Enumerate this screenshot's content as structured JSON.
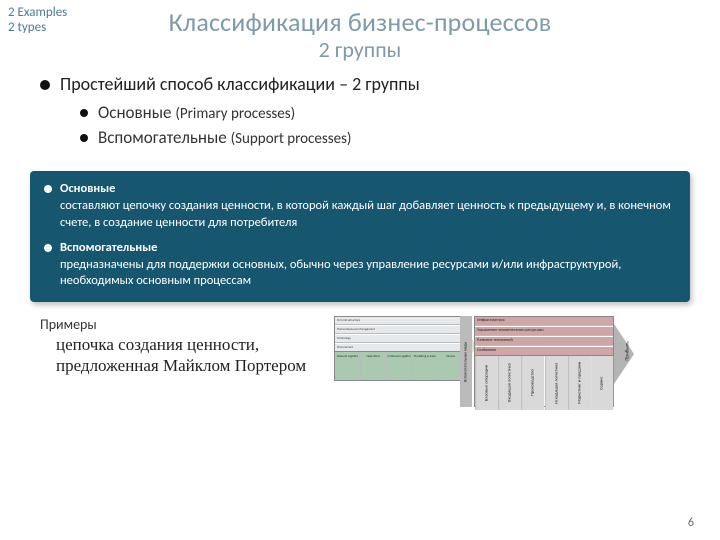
{
  "colors": {
    "title": "#7f9aa9",
    "corner_note": "#4a7a9a",
    "defbox_bg": "#17566f",
    "defbox_text": "#ffffff",
    "body_text": "#333333",
    "vc1_primary": "#a9c9b1",
    "vc1_margin": "#d7e5c9",
    "vc2_support": "#cfa6a6",
    "vc2_primary": "#d9d9d9",
    "vc2_margin": "#b4b4b4"
  },
  "fonts": {
    "title_size_pt": 26,
    "subtitle_size_pt": 22,
    "bullet_l1_pt": 18,
    "bullet_l2_pt": 17,
    "defbox_pt": 12.5,
    "example_label_pt": 14,
    "example_desc_pt": 17
  },
  "corner_note": {
    "line1": "2 Examples",
    "line2": "2 types"
  },
  "title": {
    "main": "Классификация бизнес-процессов",
    "sub": "2 группы"
  },
  "bullets": {
    "l1": "Простейший способ классификации – 2 группы",
    "l2a_main": "Основные",
    "l2a_paren": "(Primary processes)",
    "l2b_main": "Вспомогательные",
    "l2b_paren": "(Support processes)"
  },
  "definitions": {
    "a_head": "Основные",
    "a_body": "составляют цепочку создания ценности, в которой каждый шаг добавляет ценность к предыдущему и, в конечном счете, в создание ценности для потребителя",
    "b_head": "Вспомогательные",
    "b_body": "предназначены для поддержки основных, обычно через управление ресурсами и/или инфраструктурой, необходимых основным процессам"
  },
  "examples": {
    "label": "Примеры",
    "desc": "цепочка создания ценности, предложенная Майклом Портером"
  },
  "vc1": {
    "support": [
      "Firm Infrastructure",
      "Human Resource Management",
      "Technology",
      "Procurement"
    ],
    "primary": [
      "Inbound Logistics",
      "Operations",
      "Outbound Logistics",
      "Marketing & Sales",
      "Service"
    ],
    "margin_label": "Margin"
  },
  "vc2": {
    "side_label": "Вспомогательные виды",
    "support": [
      "Инфраструктура",
      "Управление человеческими ресурсами",
      "Развитие технологий",
      "Снабжение"
    ],
    "primary": [
      "Базовые операции",
      "Входящая логистика",
      "Производство",
      "Исходящая логистика",
      "Маркетинг и продажи",
      "Сервис"
    ],
    "margin_label": "Прибыль"
  },
  "page_number": "6"
}
